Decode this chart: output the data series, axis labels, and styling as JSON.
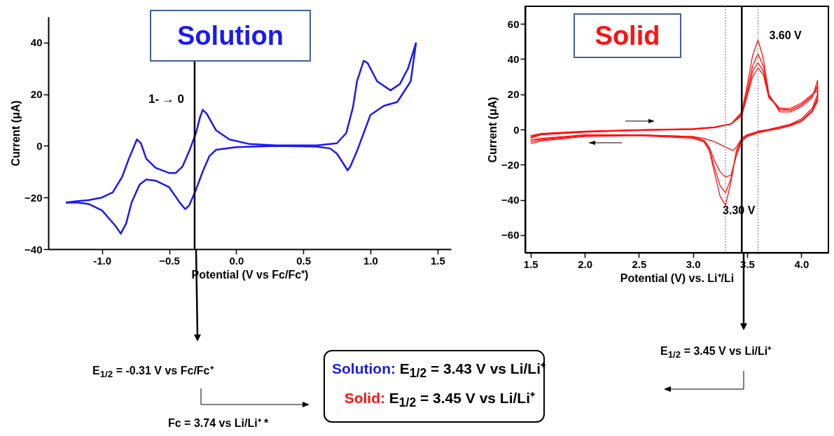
{
  "chart_data": [
    {
      "type": "line",
      "title": "Solution",
      "xlabel": "Potential (V vs Fc/Fc⁺)",
      "ylabel": "Current (μA)",
      "xlim": [
        -1.4,
        1.6
      ],
      "xticks": [
        {
          "value": -1,
          "label": "-1.0"
        },
        -0.5,
        {
          "value": 0,
          "label": "0.0"
        },
        0.5,
        {
          "value": 1,
          "label": "1.0"
        },
        1.5
      ],
      "ylim": [
        -40,
        50
      ],
      "yticks": [
        -40,
        -20,
        0,
        20,
        40
      ],
      "grid": false,
      "series": [
        {
          "color": "#1a1af0",
          "x": [
            1.34,
            1.3,
            1.2,
            1.1,
            1.0,
            0.95,
            0.9,
            0.85,
            0.83,
            0.8,
            0.75,
            0.7,
            0.6,
            0.3,
            0.0,
            -0.15,
            -0.2,
            -0.25,
            -0.3,
            -0.35,
            -0.38,
            -0.42,
            -0.5,
            -0.6,
            -0.67,
            -0.72,
            -0.78,
            -0.82,
            -0.86,
            -0.9,
            -1.0,
            -1.1,
            -1.18,
            -1.27
          ],
          "values": [
            40,
            25,
            17,
            15.5,
            12,
            5,
            -2,
            -8,
            -9.5,
            -7,
            -3,
            -1,
            -0.3,
            0,
            -0.5,
            -1.5,
            -4,
            -10,
            -17,
            -23,
            -24.5,
            -22,
            -16,
            -13.5,
            -13,
            -15,
            -22,
            -30,
            -34,
            -31,
            -25,
            -22.5,
            -22,
            -22
          ]
        },
        {
          "color": "#1a1af0",
          "x": [
            -1.27,
            -1.2,
            -1.1,
            -1.0,
            -0.92,
            -0.85,
            -0.8,
            -0.76,
            -0.74,
            -0.71,
            -0.67,
            -0.6,
            -0.5,
            -0.45,
            -0.4,
            -0.35,
            -0.3,
            -0.27,
            -0.25,
            -0.22,
            -0.15,
            -0.05,
            0.1,
            0.3,
            0.6,
            0.75,
            0.82,
            0.87,
            0.9,
            0.95,
            0.98,
            1.05,
            1.15,
            1.22,
            1.28,
            1.34
          ],
          "values": [
            -22,
            -21.5,
            -21,
            -20,
            -18,
            -12,
            -5,
            0,
            2.5,
            1,
            -5,
            -8.5,
            -10.5,
            -10.5,
            -8,
            -2,
            5,
            11,
            14,
            12.5,
            6,
            2.5,
            0.7,
            0.2,
            0.2,
            1,
            5,
            15,
            25,
            33,
            32,
            25,
            21.5,
            24,
            30,
            40
          ]
        }
      ],
      "ref_lines": [
        {
          "axis": "x",
          "value": -0.31,
          "color": "#000000"
        }
      ],
      "legend": false,
      "annotations": [
        "1- → 0",
        "E$_{1/2}$ = -0.31 V vs Fc/Fc⁺",
        "Fc = 3.74 vs Li/Li⁺ *",
        "Solution: E$_{1/2}$ = 3.43 V vs Li/Li⁺"
      ]
    },
    {
      "type": "line",
      "title": "Solid",
      "xlabel": "Potential (V) vs. Li⁺/Li",
      "ylabel": "Current (μA)",
      "xlim": [
        1.45,
        4.25
      ],
      "xticks": [
        1.5,
        {
          "value": 2,
          "label": "2.0"
        },
        2.5,
        {
          "value": 3,
          "label": "3.0"
        },
        3.5,
        {
          "value": 4,
          "label": "4.0"
        }
      ],
      "ylim": [
        -70,
        70
      ],
      "yticks": [
        -60,
        -40,
        -20,
        0,
        20,
        40,
        60
      ],
      "grid": false,
      "series": [
        {
          "color": "#ff1010",
          "x": [
            1.5,
            1.6,
            2.0,
            2.5,
            3.0,
            3.2,
            3.35,
            3.45,
            3.5,
            3.55,
            3.6,
            3.65,
            3.7,
            3.8,
            3.9,
            4.0,
            4.1,
            4.15,
            4.15,
            4.1,
            4.0,
            3.9,
            3.8,
            3.7,
            3.6,
            3.5,
            3.45,
            3.4,
            3.35,
            3.3,
            3.25,
            3.2,
            3.15,
            3.1,
            3.0,
            2.5,
            2.0,
            1.6,
            1.5
          ],
          "values": [
            -5,
            -3,
            -1.5,
            -0.5,
            0,
            1,
            3,
            10,
            25,
            42,
            51,
            40,
            20,
            10,
            10,
            13,
            18,
            28,
            20,
            12,
            6,
            3,
            1.5,
            0,
            -1,
            -3,
            -5,
            -12,
            -30,
            -43,
            -38,
            -25,
            -12,
            -7,
            -5,
            -3.5,
            -4,
            -6.5,
            -8
          ]
        },
        {
          "color": "#ff1010",
          "x": [
            1.5,
            1.6,
            2.0,
            2.5,
            3.0,
            3.2,
            3.35,
            3.45,
            3.5,
            3.55,
            3.6,
            3.65,
            3.7,
            3.8,
            3.9,
            4.0,
            4.1,
            4.15,
            4.15,
            4.1,
            4.0,
            3.9,
            3.8,
            3.7,
            3.6,
            3.5,
            3.45,
            3.4,
            3.35,
            3.3,
            3.25,
            3.2,
            3.15,
            3.1,
            3.0,
            2.5,
            2.0,
            1.6,
            1.5
          ],
          "values": [
            -4.5,
            -2.8,
            -1.3,
            -0.4,
            0.2,
            1.2,
            3,
            9,
            22,
            36,
            43,
            36,
            19,
            11,
            11,
            14,
            19,
            24,
            18,
            11,
            5,
            2.5,
            1,
            -0.3,
            -1.5,
            -3.5,
            -6,
            -13,
            -28,
            -36,
            -32,
            -22,
            -11,
            -6.5,
            -4.5,
            -3.2,
            -3.6,
            -6,
            -7
          ]
        },
        {
          "color": "#ff1010",
          "x": [
            1.5,
            1.6,
            2.0,
            2.5,
            3.0,
            3.2,
            3.35,
            3.45,
            3.5,
            3.55,
            3.6,
            3.65,
            3.7,
            3.8,
            3.9,
            4.0,
            4.1,
            4.15,
            4.15,
            4.1,
            4.0,
            3.9,
            3.8,
            3.7,
            3.6,
            3.5,
            3.45,
            3.4,
            3.35,
            3.3,
            3.25,
            3.2,
            3.15,
            3.1,
            3.0,
            2.5,
            2.0,
            1.6,
            1.5
          ],
          "values": [
            -4,
            -2.5,
            -1.2,
            -0.3,
            0.3,
            1.3,
            3,
            8,
            19,
            30,
            35,
            31,
            18,
            12,
            12,
            15,
            20,
            22,
            16,
            10,
            4.5,
            2,
            0.5,
            -0.5,
            -2,
            -4,
            -7,
            -15,
            -26,
            -27,
            -24,
            -18,
            -10,
            -6,
            -4,
            -3,
            -3.3,
            -5.5,
            -6
          ]
        },
        {
          "color": "#ff1010",
          "x": [
            1.5,
            1.6,
            2.0,
            2.5,
            3.0,
            3.2,
            3.35,
            3.45,
            3.5,
            3.55,
            3.6,
            3.65,
            3.7,
            3.8,
            3.9,
            4.0,
            4.1,
            4.15,
            4.15,
            4.1,
            4.0,
            3.9,
            3.8,
            3.7,
            3.6,
            3.5,
            3.45,
            3.4,
            3.37,
            3.3,
            3.2,
            3.1,
            3.0,
            2.5,
            2.0,
            1.6,
            1.5
          ],
          "values": [
            -3.5,
            -2.2,
            -1,
            -0.2,
            0.4,
            1.4,
            3.2,
            8,
            20,
            33,
            38,
            33,
            19,
            12,
            11,
            14,
            19,
            25,
            17,
            10,
            5,
            2.5,
            1,
            -0.2,
            -1.5,
            -3,
            -5,
            -10,
            -12,
            -10,
            -7,
            -5,
            -4,
            -3,
            -3,
            -5,
            -6
          ]
        }
      ],
      "ref_lines": [
        {
          "axis": "x",
          "value": 3.6,
          "label": "3.60 V",
          "color": "#888888",
          "line_style": "dotted"
        },
        {
          "axis": "x",
          "value": 3.3,
          "label": "3.30 V",
          "color": "#888888",
          "line_style": "dotted"
        },
        {
          "axis": "x",
          "value": 3.45,
          "color": "#000000"
        }
      ],
      "legend": false,
      "annotations": [
        "E$_{1/2}$ = 3.45 V vs Li/Li⁺",
        "Solid: E$_{1/2}$ = 3.45 V vs Li/Li⁺"
      ]
    }
  ]
}
